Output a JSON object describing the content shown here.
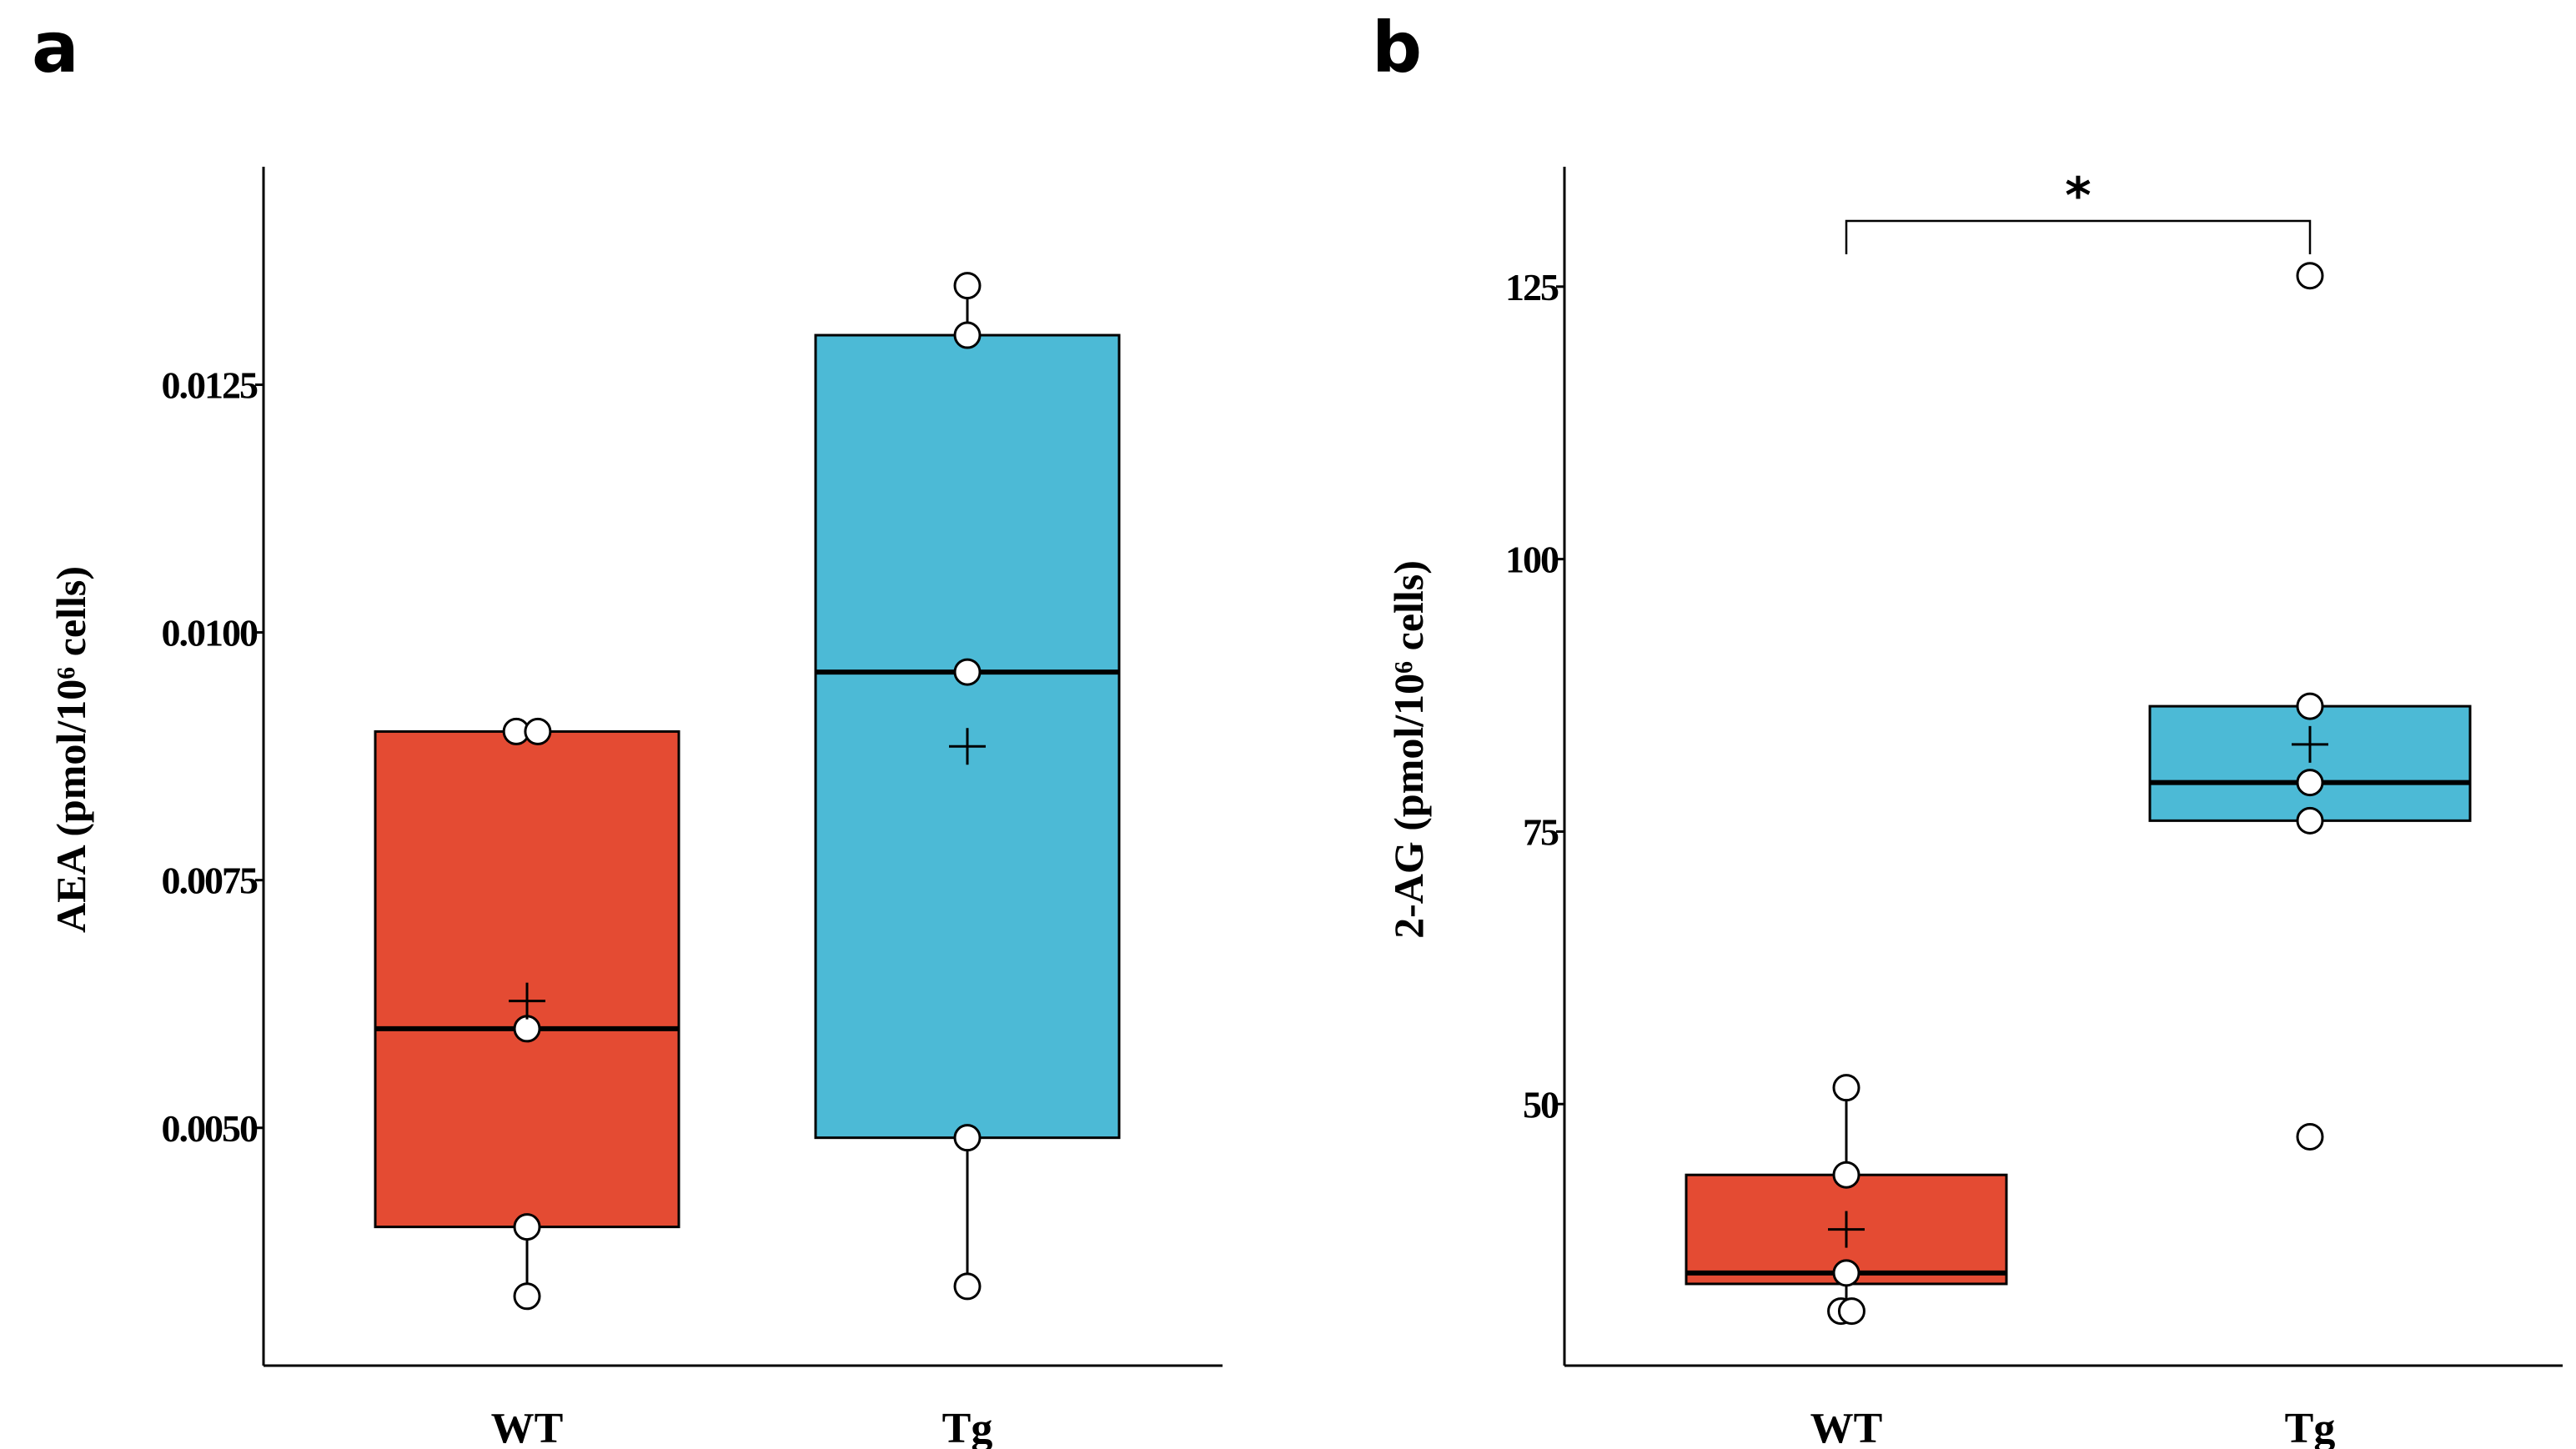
{
  "panels": [
    {
      "letter": "a"
    },
    {
      "letter": "b"
    }
  ],
  "colors": {
    "WT": "#e44b33",
    "Tg": "#4cbad6"
  },
  "chart_data": [
    {
      "type": "box",
      "panel": "a",
      "categories": [
        "WT",
        "Tg"
      ],
      "ylabel": "AEA  (pmol/10⁶ cells)",
      "ylim": [
        0.0026,
        0.0147
      ],
      "yticks": [
        0.005,
        0.0075,
        0.01,
        0.0125
      ],
      "ytick_labels": [
        "0.0050",
        "0.0075",
        "0.0100",
        "0.0125"
      ],
      "boxes": [
        {
          "name": "WT",
          "whisker_low": 0.0033,
          "q1": 0.004,
          "median": 0.006,
          "q3": 0.009,
          "whisker_high": 0.009,
          "mean": 0.00628
        },
        {
          "name": "Tg",
          "whisker_low": 0.0034,
          "q1": 0.0049,
          "median": 0.0096,
          "q3": 0.013,
          "whisker_high": 0.0135,
          "mean": 0.00885
        }
      ],
      "points": [
        {
          "category": "WT",
          "values": [
            0.0033,
            0.004,
            0.006,
            0.009,
            0.009
          ],
          "offsets": [
            0,
            0,
            0,
            -0.08,
            0.08
          ]
        },
        {
          "category": "Tg",
          "values": [
            0.0034,
            0.0049,
            0.0096,
            0.013,
            0.0135
          ],
          "offsets": [
            0,
            0,
            0,
            0,
            0
          ]
        }
      ]
    },
    {
      "type": "box",
      "panel": "b",
      "categories": [
        "WT",
        "Tg"
      ],
      "ylabel": "2-AG  (pmol/10⁶ cells)",
      "ylim": [
        26,
        136
      ],
      "yticks": [
        50,
        75,
        100,
        125
      ],
      "ytick_labels": [
        "50",
        "75",
        "100",
        "125"
      ],
      "boxes": [
        {
          "name": "WT",
          "whisker_low": 31,
          "q1": 33.5,
          "median": 34.5,
          "q3": 43.5,
          "whisker_high": 51.5,
          "mean": 38.5
        },
        {
          "name": "Tg",
          "whisker_low": 76,
          "q1": 76,
          "median": 79.5,
          "q3": 86.5,
          "whisker_high": 86.5,
          "mean": 83
        }
      ],
      "points": [
        {
          "category": "WT",
          "values": [
            31,
            31,
            34.5,
            43.5,
            51.5
          ],
          "offsets": [
            -0.04,
            0.04,
            0,
            0,
            0
          ]
        },
        {
          "category": "Tg",
          "values": [
            47,
            76,
            79.5,
            86.5,
            126
          ],
          "offsets": [
            0,
            0,
            0,
            0,
            0
          ]
        }
      ],
      "significance": {
        "label": "*",
        "between": [
          "WT",
          "Tg"
        ]
      }
    }
  ]
}
